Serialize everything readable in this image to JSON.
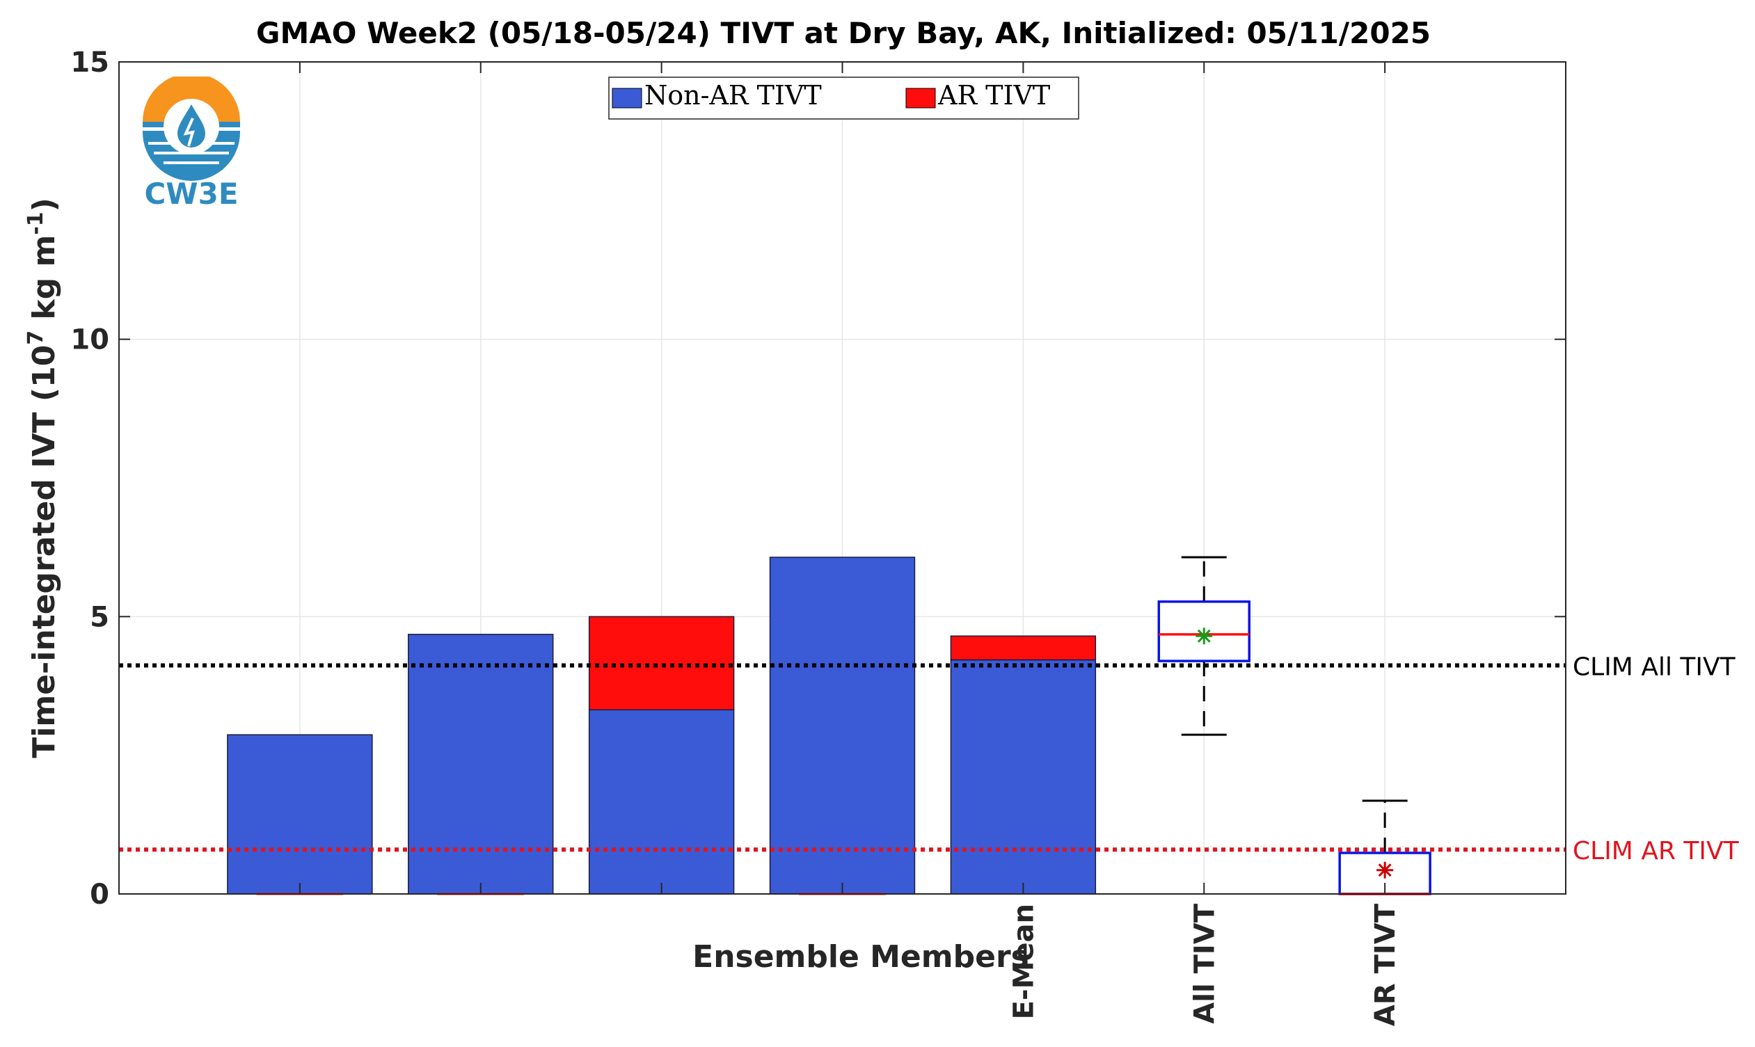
{
  "chart_data": {
    "type": "bar",
    "title": "GMAO Week2 (05/18-05/24) TIVT at Dry Bay, AK, Initialized: 05/11/2025",
    "ylabel_main": "Time-integrated IVT (10",
    "ylabel_exp1": "7",
    "ylabel_mid": " kg m",
    "ylabel_exp2": "-1",
    "ylabel_end": ")",
    "xlabel": "Ensemble Members",
    "ylim": [
      0,
      15
    ],
    "yticks": [
      0,
      5,
      10,
      15
    ],
    "grid": true,
    "legend_position": "top-center",
    "legend": [
      {
        "label": "Non-AR TIVT",
        "color": "#3b5bd6"
      },
      {
        "label": "AR TIVT",
        "color": "#ff0d0d"
      }
    ],
    "x_positions": [
      1,
      2,
      3,
      4,
      5,
      6,
      7
    ],
    "tick_labels": [
      "",
      "",
      "",
      "",
      "E-Mean",
      "All TIVT",
      "AR TIVT"
    ],
    "series": [
      {
        "name": "Non-AR TIVT",
        "values": [
          2.87,
          4.68,
          3.32,
          6.07,
          4.22
        ],
        "color": "#3b5bd6"
      },
      {
        "name": "AR TIVT",
        "values": [
          0,
          0,
          1.68,
          0,
          0.43
        ],
        "color": "#ff0d0d"
      }
    ],
    "boxplots": [
      {
        "label": "All TIVT",
        "x": 6,
        "min": 2.87,
        "q1": 4.2,
        "median": 4.68,
        "q3": 5.27,
        "max": 6.07,
        "mean": 4.65,
        "box_color": "#0a14e6",
        "median_color": "#ff0d0d",
        "mean_color": "#1a9a1a"
      },
      {
        "label": "AR TIVT",
        "x": 7,
        "min": 0,
        "q1": 0,
        "median": 0,
        "q3": 0.74,
        "max": 1.68,
        "mean": 0.43,
        "box_color": "#0a14e6",
        "median_color": "#ff0d0d",
        "mean_color": "#cc0000"
      }
    ],
    "reference_lines": [
      {
        "label": "CLIM All TIVT",
        "value": 4.12,
        "color": "#000000"
      },
      {
        "label": "CLIM AR TIVT",
        "value": 0.8,
        "color": "#e0141e"
      }
    ]
  },
  "logo": {
    "text": "CW3E",
    "colors": {
      "sun": "#f7941d",
      "water": "#2e8bc0",
      "text": "#2e8bc0"
    }
  }
}
